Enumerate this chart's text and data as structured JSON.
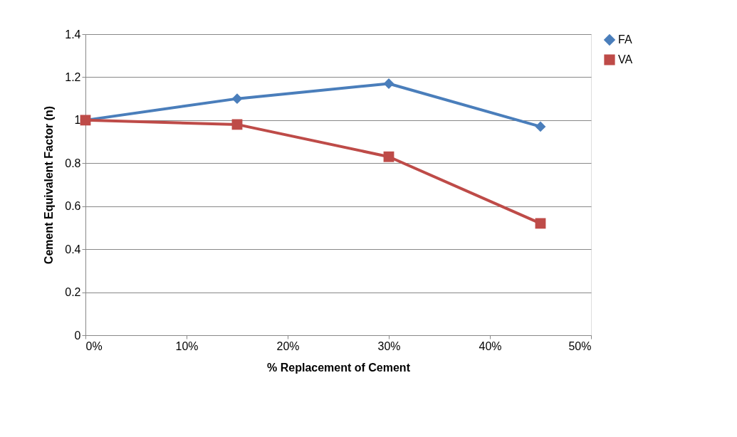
{
  "chart_data": {
    "type": "line",
    "xlabel": "% Replacement of Cement",
    "ylabel": "Cement Equivalent Factor (n)",
    "x": [
      0,
      15,
      30,
      45
    ],
    "series": [
      {
        "name": "FA",
        "color": "#4a7ebb",
        "marker": "diamond",
        "values": [
          1,
          1.1,
          1.17,
          0.97
        ]
      },
      {
        "name": "VA",
        "color": "#be4b48",
        "marker": "square",
        "values": [
          1,
          0.98,
          0.83,
          0.52
        ]
      }
    ],
    "xlim": [
      0,
      50
    ],
    "xticks": [
      {
        "value": 0,
        "label": "0%"
      },
      {
        "value": 10,
        "label": "10%"
      },
      {
        "value": 20,
        "label": "20%"
      },
      {
        "value": 30,
        "label": "30%"
      },
      {
        "value": 40,
        "label": "40%"
      },
      {
        "value": 50,
        "label": "50%"
      }
    ],
    "ylim": [
      0,
      1.4
    ],
    "yticks": [
      0,
      0.2,
      0.4,
      0.6,
      0.8,
      1,
      1.2,
      1.4
    ],
    "grid": "y",
    "legend": "right",
    "line_style": "solid"
  }
}
